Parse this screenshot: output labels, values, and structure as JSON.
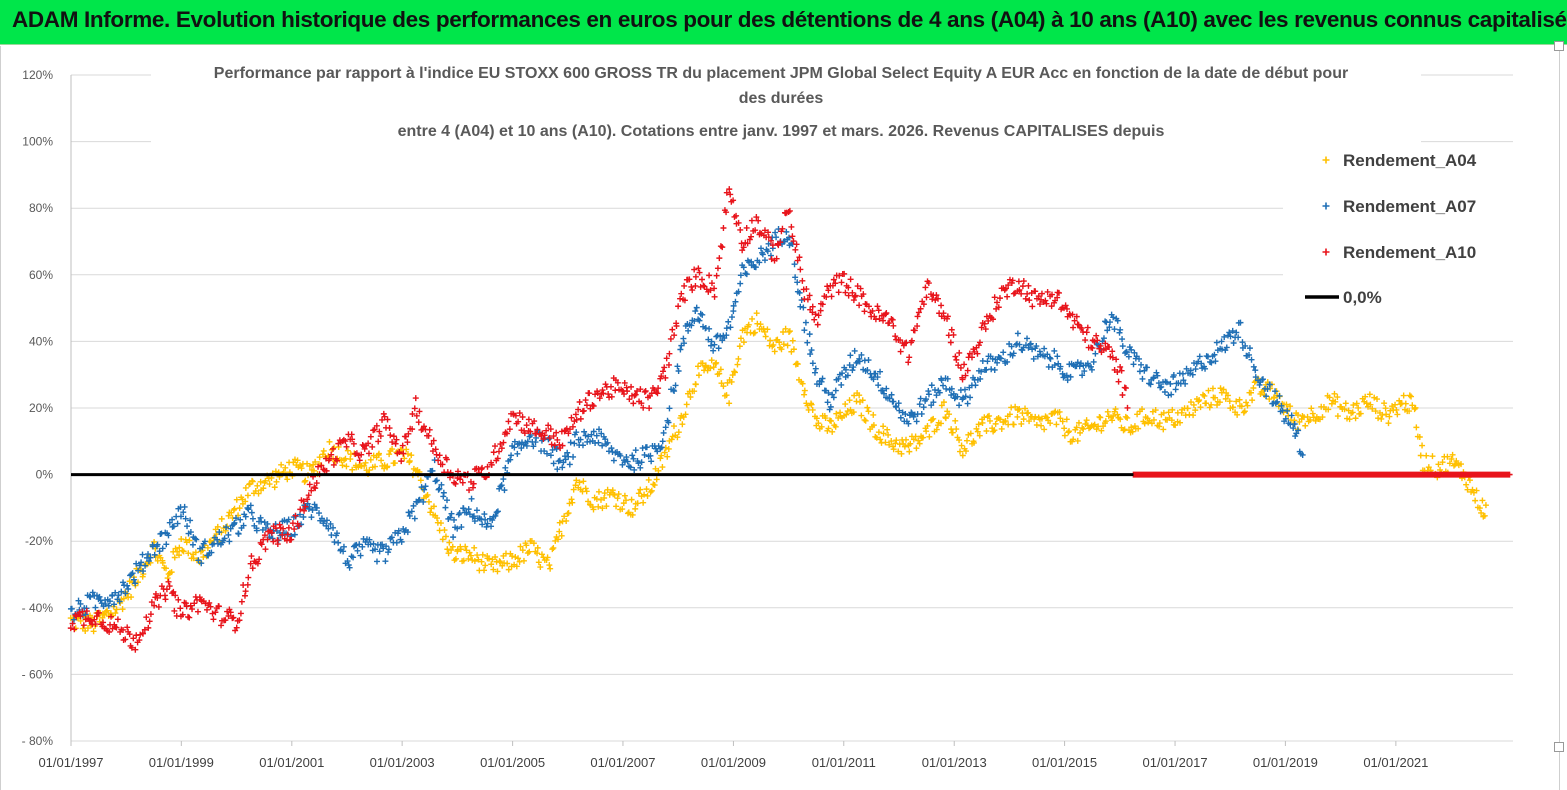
{
  "banner": {
    "title": "ADAM Informe. Evolution historique des performances en euros pour des détentions de 4 ans (A04) à 10 ans (A10) avec les revenus connus capitalisés",
    "bg_color": "#00e64a"
  },
  "chart_data": {
    "type": "scatter",
    "title_lines": [
      "Performance par rapport à l'indice EU STOXX 600 GROSS TR  du placement JPM Global Select Equity A EUR Acc en fonction de la date de début pour",
      "des durées",
      "entre 4 (A04) et 10 ans (A10). Cotations entre janv. 1997 et mars. 2026. Revenus CAPITALISES depuis"
    ],
    "xlabel": "",
    "ylabel": "",
    "ylim": [
      -80,
      120
    ],
    "xlim": [
      "1997-01-01",
      "2023-02-15"
    ],
    "y_ticks": [
      -80,
      -60,
      -40,
      -20,
      0,
      20,
      40,
      60,
      80,
      100,
      120
    ],
    "y_tick_labels": [
      "- 80%",
      "- 60%",
      "- 40%",
      "-20%",
      "0%",
      "20%",
      "40%",
      "60%",
      "80%",
      "100%",
      "120%"
    ],
    "x_tick_labels": [
      "01/01/1997",
      "01/01/1999",
      "01/01/2001",
      "01/01/2003",
      "01/01/2005",
      "01/01/2007",
      "01/01/2009",
      "01/01/2011",
      "01/01/2013",
      "01/01/2015",
      "01/01/2017",
      "01/01/2019",
      "01/01/2021"
    ],
    "grid": "horizontal",
    "legend_position": "right",
    "series": [
      {
        "name": "Rendement_A04",
        "color": "#ffc000",
        "marker": "plus",
        "points": [
          [
            "1997-01-01",
            -44
          ],
          [
            "1997-06-01",
            -45
          ],
          [
            "1997-11-01",
            -40
          ],
          [
            "1998-03-01",
            -32
          ],
          [
            "1998-07-01",
            -22
          ],
          [
            "1998-10-01",
            -30
          ],
          [
            "1999-01-01",
            -20
          ],
          [
            "1999-05-01",
            -25
          ],
          [
            "1999-09-01",
            -18
          ],
          [
            "2000-01-01",
            -10
          ],
          [
            "2000-04-01",
            -4
          ],
          [
            "2000-08-01",
            -2
          ],
          [
            "2001-01-01",
            2
          ],
          [
            "2001-05-01",
            0
          ],
          [
            "2001-09-01",
            8
          ],
          [
            "2002-01-01",
            5
          ],
          [
            "2002-05-01",
            2
          ],
          [
            "2002-09-01",
            4
          ],
          [
            "2003-01-01",
            6
          ],
          [
            "2003-04-01",
            2
          ],
          [
            "2003-08-01",
            -12
          ],
          [
            "2003-12-01",
            -24
          ],
          [
            "2004-04-01",
            -24
          ],
          [
            "2004-08-01",
            -28
          ],
          [
            "2005-01-01",
            -26
          ],
          [
            "2005-05-01",
            -22
          ],
          [
            "2005-09-01",
            -28
          ],
          [
            "2005-12-01",
            -14
          ],
          [
            "2006-03-01",
            -2
          ],
          [
            "2006-07-01",
            -8
          ],
          [
            "2006-11-01",
            -6
          ],
          [
            "2007-03-01",
            -10
          ],
          [
            "2007-07-01",
            -4
          ],
          [
            "2007-10-01",
            5
          ],
          [
            "2008-02-01",
            18
          ],
          [
            "2008-05-01",
            30
          ],
          [
            "2008-09-01",
            32
          ],
          [
            "2008-12-01",
            24
          ],
          [
            "2009-03-01",
            42
          ],
          [
            "2009-06-01",
            46
          ],
          [
            "2009-10-01",
            38
          ],
          [
            "2010-01-01",
            42
          ],
          [
            "2010-04-01",
            28
          ],
          [
            "2010-07-01",
            16
          ],
          [
            "2010-10-01",
            14
          ],
          [
            "2011-01-01",
            18
          ],
          [
            "2011-04-01",
            22
          ],
          [
            "2011-08-01",
            14
          ],
          [
            "2011-11-01",
            10
          ],
          [
            "2012-03-01",
            8
          ],
          [
            "2012-07-01",
            12
          ],
          [
            "2012-11-01",
            20
          ],
          [
            "2013-03-01",
            8
          ],
          [
            "2013-07-01",
            14
          ],
          [
            "2013-11-01",
            16
          ],
          [
            "2014-03-01",
            18
          ],
          [
            "2014-07-01",
            15
          ],
          [
            "2014-11-01",
            17
          ],
          [
            "2015-03-01",
            12
          ],
          [
            "2015-07-01",
            14
          ],
          [
            "2015-11-01",
            18
          ],
          [
            "2016-03-01",
            14
          ],
          [
            "2016-07-01",
            18
          ],
          [
            "2016-11-01",
            16
          ],
          [
            "2017-03-01",
            18
          ],
          [
            "2017-07-01",
            22
          ],
          [
            "2017-11-01",
            24
          ],
          [
            "2018-03-01",
            20
          ],
          [
            "2018-07-01",
            26
          ],
          [
            "2018-11-01",
            24
          ],
          [
            "2019-03-01",
            16
          ],
          [
            "2019-07-01",
            18
          ],
          [
            "2019-11-01",
            22
          ],
          [
            "2020-03-01",
            18
          ],
          [
            "2020-07-01",
            22
          ],
          [
            "2020-11-01",
            18
          ],
          [
            "2021-03-01",
            22
          ],
          [
            "2021-05-01",
            20
          ],
          [
            "2021-07-01",
            4
          ],
          [
            "2021-10-01",
            2
          ],
          [
            "2022-01-01",
            4
          ],
          [
            "2022-04-01",
            0
          ],
          [
            "2022-07-01",
            -8
          ],
          [
            "2022-09-01",
            -12
          ]
        ]
      },
      {
        "name": "Rendement_A07",
        "color": "#1f6fb5",
        "marker": "plus",
        "points": [
          [
            "1997-01-01",
            -42
          ],
          [
            "1997-06-01",
            -38
          ],
          [
            "1997-11-01",
            -36
          ],
          [
            "1998-03-01",
            -30
          ],
          [
            "1998-07-01",
            -22
          ],
          [
            "1998-10-01",
            -18
          ],
          [
            "1999-01-01",
            -10
          ],
          [
            "1999-05-01",
            -24
          ],
          [
            "1999-09-01",
            -20
          ],
          [
            "2000-01-01",
            -16
          ],
          [
            "2000-04-01",
            -12
          ],
          [
            "2000-08-01",
            -18
          ],
          [
            "2001-01-01",
            -16
          ],
          [
            "2001-05-01",
            -10
          ],
          [
            "2001-09-01",
            -14
          ],
          [
            "2002-01-01",
            -26
          ],
          [
            "2002-05-01",
            -22
          ],
          [
            "2002-09-01",
            -24
          ],
          [
            "2003-01-01",
            -18
          ],
          [
            "2003-04-01",
            -10
          ],
          [
            "2003-08-01",
            2
          ],
          [
            "2003-12-01",
            -16
          ],
          [
            "2004-04-01",
            -10
          ],
          [
            "2004-08-01",
            -16
          ],
          [
            "2005-01-01",
            6
          ],
          [
            "2005-05-01",
            12
          ],
          [
            "2005-09-01",
            8
          ],
          [
            "2005-12-01",
            2
          ],
          [
            "2006-03-01",
            10
          ],
          [
            "2006-07-01",
            12
          ],
          [
            "2006-11-01",
            6
          ],
          [
            "2007-03-01",
            4
          ],
          [
            "2007-07-01",
            6
          ],
          [
            "2007-10-01",
            12
          ],
          [
            "2008-02-01",
            40
          ],
          [
            "2008-05-01",
            50
          ],
          [
            "2008-09-01",
            38
          ],
          [
            "2008-12-01",
            44
          ],
          [
            "2009-03-01",
            60
          ],
          [
            "2009-06-01",
            64
          ],
          [
            "2009-10-01",
            70
          ],
          [
            "2010-01-01",
            74
          ],
          [
            "2010-04-01",
            50
          ],
          [
            "2010-07-01",
            30
          ],
          [
            "2010-10-01",
            22
          ],
          [
            "2011-01-01",
            30
          ],
          [
            "2011-04-01",
            36
          ],
          [
            "2011-08-01",
            30
          ],
          [
            "2011-11-01",
            24
          ],
          [
            "2012-03-01",
            16
          ],
          [
            "2012-07-01",
            22
          ],
          [
            "2012-11-01",
            28
          ],
          [
            "2013-03-01",
            22
          ],
          [
            "2013-07-01",
            32
          ],
          [
            "2013-11-01",
            34
          ],
          [
            "2014-03-01",
            40
          ],
          [
            "2014-07-01",
            36
          ],
          [
            "2014-11-01",
            34
          ],
          [
            "2015-03-01",
            30
          ],
          [
            "2015-07-01",
            34
          ],
          [
            "2015-11-01",
            48
          ],
          [
            "2016-03-01",
            36
          ],
          [
            "2016-07-01",
            30
          ],
          [
            "2016-11-01",
            26
          ],
          [
            "2017-03-01",
            28
          ],
          [
            "2017-07-01",
            34
          ],
          [
            "2017-11-01",
            38
          ],
          [
            "2018-03-01",
            44
          ],
          [
            "2018-07-01",
            30
          ],
          [
            "2018-11-01",
            22
          ],
          [
            "2019-03-01",
            14
          ],
          [
            "2019-05-01",
            6
          ]
        ]
      },
      {
        "name": "Rendement_A10",
        "color": "#e8141b",
        "marker": "plus",
        "points": [
          [
            "1997-01-01",
            -44
          ],
          [
            "1997-06-01",
            -42
          ],
          [
            "1997-11-01",
            -46
          ],
          [
            "1998-03-01",
            -50
          ],
          [
            "1998-07-01",
            -40
          ],
          [
            "1998-10-01",
            -34
          ],
          [
            "1999-01-01",
            -42
          ],
          [
            "1999-05-01",
            -38
          ],
          [
            "1999-09-01",
            -42
          ],
          [
            "2000-01-01",
            -44
          ],
          [
            "2000-04-01",
            -28
          ],
          [
            "2000-08-01",
            -18
          ],
          [
            "2001-01-01",
            -18
          ],
          [
            "2001-05-01",
            -4
          ],
          [
            "2001-09-01",
            4
          ],
          [
            "2002-01-01",
            10
          ],
          [
            "2002-05-01",
            6
          ],
          [
            "2002-09-01",
            16
          ],
          [
            "2003-01-01",
            6
          ],
          [
            "2003-04-01",
            20
          ],
          [
            "2003-08-01",
            8
          ],
          [
            "2003-12-01",
            0
          ],
          [
            "2004-04-01",
            -2
          ],
          [
            "2004-08-01",
            2
          ],
          [
            "2005-01-01",
            18
          ],
          [
            "2005-05-01",
            14
          ],
          [
            "2005-09-01",
            12
          ],
          [
            "2005-12-01",
            10
          ],
          [
            "2006-03-01",
            18
          ],
          [
            "2006-07-01",
            24
          ],
          [
            "2006-11-01",
            26
          ],
          [
            "2007-03-01",
            24
          ],
          [
            "2007-07-01",
            22
          ],
          [
            "2007-10-01",
            30
          ],
          [
            "2008-02-01",
            54
          ],
          [
            "2008-05-01",
            60
          ],
          [
            "2008-09-01",
            56
          ],
          [
            "2008-12-01",
            86
          ],
          [
            "2009-03-01",
            70
          ],
          [
            "2009-06-01",
            76
          ],
          [
            "2009-10-01",
            66
          ],
          [
            "2010-01-01",
            80
          ],
          [
            "2010-04-01",
            58
          ],
          [
            "2010-07-01",
            46
          ],
          [
            "2010-10-01",
            56
          ],
          [
            "2011-01-01",
            58
          ],
          [
            "2011-04-01",
            54
          ],
          [
            "2011-08-01",
            48
          ],
          [
            "2011-11-01",
            46
          ],
          [
            "2012-03-01",
            36
          ],
          [
            "2012-07-01",
            56
          ],
          [
            "2012-11-01",
            48
          ],
          [
            "2013-03-01",
            30
          ],
          [
            "2013-07-01",
            42
          ],
          [
            "2013-11-01",
            54
          ],
          [
            "2014-03-01",
            58
          ],
          [
            "2014-07-01",
            52
          ],
          [
            "2014-11-01",
            54
          ],
          [
            "2015-03-01",
            46
          ],
          [
            "2015-07-01",
            40
          ],
          [
            "2015-11-01",
            36
          ],
          [
            "2016-01-01",
            30
          ],
          [
            "2016-03-01",
            20
          ]
        ],
        "flat_zero_from": "2016-04-01",
        "flat_zero_to": "2023-02-01"
      },
      {
        "name": "0,0%",
        "color": "#000000",
        "marker": "line",
        "value": 0
      }
    ]
  }
}
